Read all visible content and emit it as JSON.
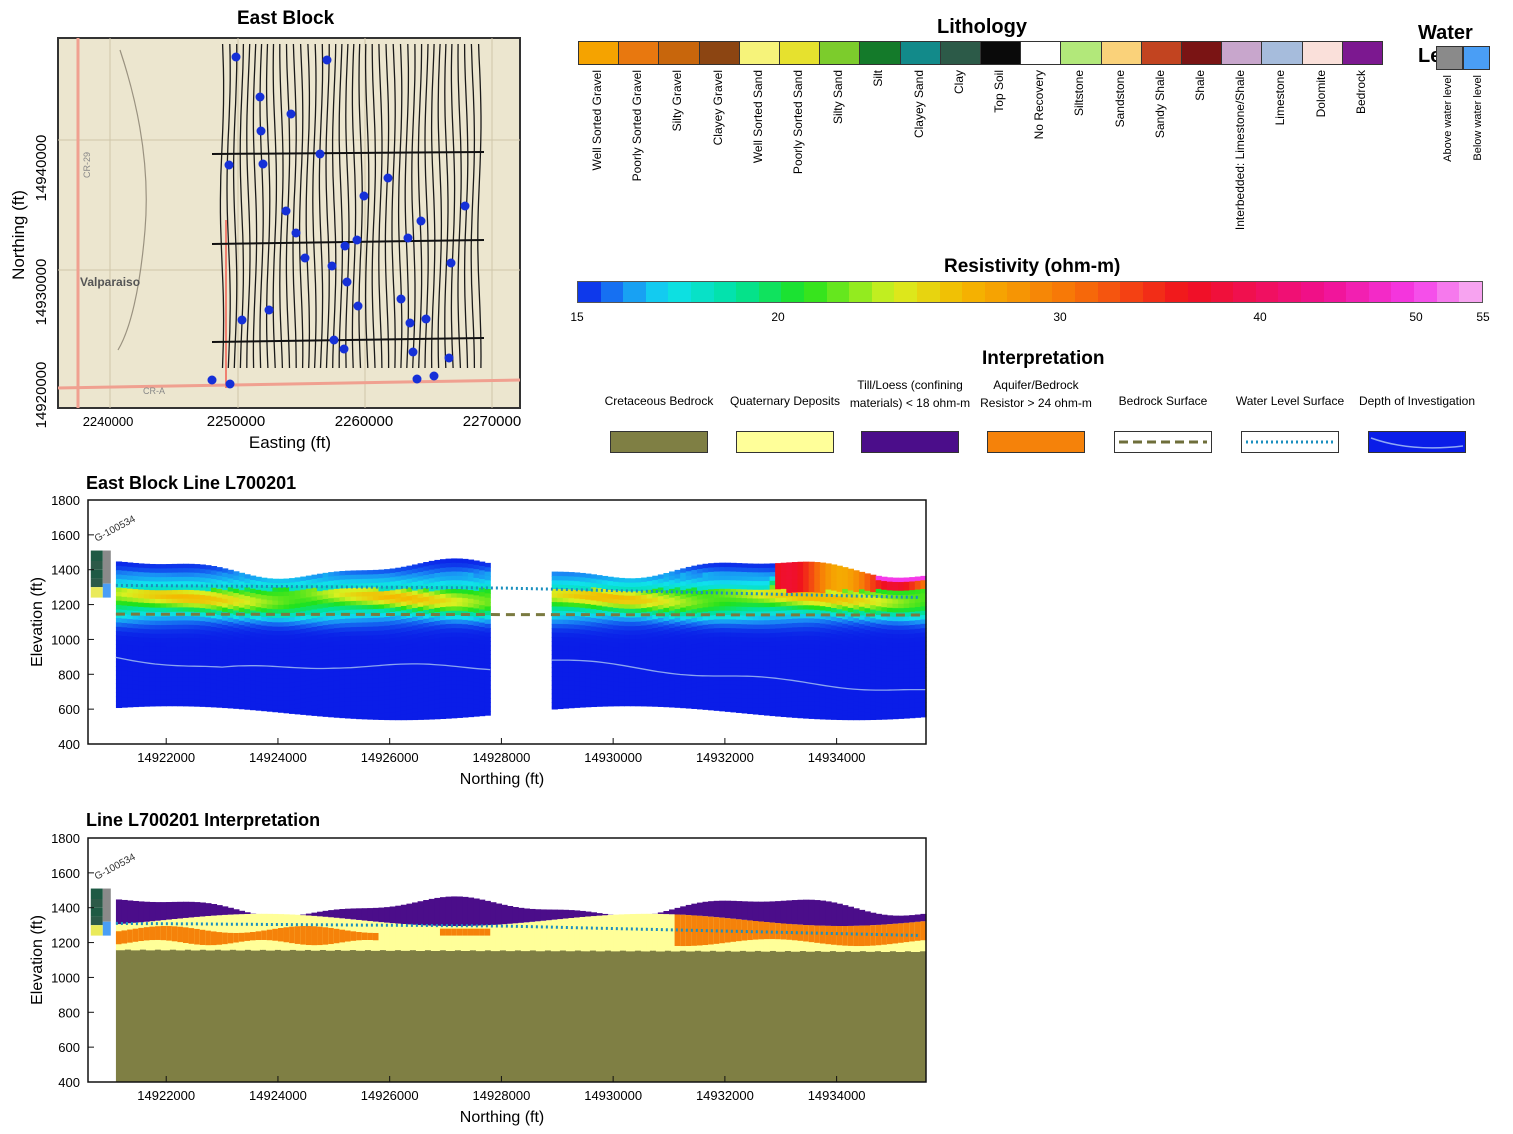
{
  "map": {
    "title": "East Block",
    "xlabel": "Easting (ft)",
    "ylabel": "Northing (ft)",
    "xticks": [
      "2240000",
      "2250000",
      "2260000",
      "2270000"
    ],
    "yticks": [
      "14940000",
      "14930000",
      "14920000"
    ],
    "place_label": "Valparaiso",
    "road_labels": [
      "CR-29",
      "CR-A"
    ]
  },
  "lithology": {
    "title": "Lithology",
    "items": [
      {
        "label": "Well Sorted Gravel",
        "color": "#f5a300"
      },
      {
        "label": "Poorly Sorted Gravel",
        "color": "#e8780f"
      },
      {
        "label": "Silty Gravel",
        "color": "#c8660c"
      },
      {
        "label": "Clayey Gravel",
        "color": "#8c4512"
      },
      {
        "label": "Well Sorted Sand",
        "color": "#f6f37a"
      },
      {
        "label": "Poorly Sorted Sand",
        "color": "#e6e12e"
      },
      {
        "label": "Silty Sand",
        "color": "#7ccc2c"
      },
      {
        "label": "Silt",
        "color": "#147a2a"
      },
      {
        "label": "Clayey Sand",
        "color": "#128a8a"
      },
      {
        "label": "Clay",
        "color": "#2c5a48"
      },
      {
        "label": "Top Soil",
        "color": "#0a0a0a"
      },
      {
        "label": "No Recovery",
        "color": "#ffffff"
      },
      {
        "label": "Siltstone",
        "color": "#b2e87a"
      },
      {
        "label": "Sandstone",
        "color": "#fad27a"
      },
      {
        "label": "Sandy Shale",
        "color": "#c24420"
      },
      {
        "label": "Shale",
        "color": "#7a1414"
      },
      {
        "label": "Interbedded: Limestone/Shale",
        "color": "#c8a6cc"
      },
      {
        "label": "Limestone",
        "color": "#a6bcdc"
      },
      {
        "label": "Dolomite",
        "color": "#fae0da"
      },
      {
        "label": "Bedrock",
        "color": "#7c1890"
      }
    ]
  },
  "water_level": {
    "title": "Water Level",
    "items": [
      {
        "label": "Above water level",
        "color": "#8a8a8a"
      },
      {
        "label": "Below water level",
        "color": "#4a9ef5"
      }
    ]
  },
  "resistivity": {
    "title": "Resistivity (ohm-m)",
    "ticks": [
      "15",
      "20",
      "30",
      "40",
      "50",
      "55"
    ]
  },
  "interpretation_legend": {
    "title": "Interpretation",
    "items": [
      {
        "label": "Cretaceous Bedrock",
        "kind": "fill",
        "color": "#7f7f44"
      },
      {
        "label": "Quaternary Deposits",
        "kind": "fill",
        "color": "#ffff99"
      },
      {
        "label": "Till/Loess (confining materials) < 18 ohm-m",
        "kind": "fill",
        "color": "#4b0d8a"
      },
      {
        "label": "Aquifer/Bedrock Resistor > 24 ohm-m",
        "kind": "fill",
        "color": "#f5820a"
      },
      {
        "label": "Bedrock Surface",
        "kind": "dash",
        "color": "#6e6e3a"
      },
      {
        "label": "Water Level Surface",
        "kind": "dots",
        "color": "#1a8fbf"
      },
      {
        "label": "Depth of Investigation",
        "kind": "doi",
        "color": "#0a1de8"
      }
    ]
  },
  "chart_data": [
    {
      "type": "heatmap",
      "title": "East Block Line L700201",
      "xlabel": "Northing (ft)",
      "ylabel": "Elevation (ft)",
      "xlim": [
        14920600,
        14935600
      ],
      "ylim": [
        400,
        1800
      ],
      "xticks": [
        14922000,
        14924000,
        14926000,
        14928000,
        14930000,
        14932000,
        14934000
      ],
      "yticks": [
        400,
        600,
        800,
        1000,
        1200,
        1400,
        1600,
        1800
      ],
      "borehole": "G-100534",
      "segments": [
        [
          14921100,
          14927800
        ],
        [
          14928900,
          14935600
        ]
      ],
      "water_level_surface": {
        "x": [
          14921100,
          14928000,
          14935600
        ],
        "y": [
          1310,
          1295,
          1240
        ]
      },
      "bedrock_surface": {
        "x": [
          14921100,
          14935600
        ],
        "y": [
          1145,
          1140
        ]
      },
      "depth_of_investigation": {
        "x": [
          14921100,
          14923000,
          14925000,
          14927800,
          14928900,
          14931000,
          14933000,
          14935600
        ],
        "y": [
          900,
          830,
          850,
          840,
          880,
          820,
          760,
          700
        ]
      }
    },
    {
      "type": "area",
      "title": "Line L700201 Interpretation",
      "xlabel": "Northing (ft)",
      "ylabel": "Elevation (ft)",
      "xlim": [
        14920600,
        14935600
      ],
      "ylim": [
        400,
        1800
      ],
      "xticks": [
        14922000,
        14924000,
        14926000,
        14928000,
        14930000,
        14932000,
        14934000
      ],
      "yticks": [
        400,
        600,
        800,
        1000,
        1200,
        1400,
        1600,
        1800
      ],
      "borehole": "G-100534",
      "water_level_surface": {
        "x": [
          14921100,
          14928000,
          14935600
        ],
        "y": [
          1310,
          1295,
          1240
        ]
      },
      "bedrock_surface": {
        "x": [
          14921100,
          14935600
        ],
        "y": [
          1160,
          1150
        ]
      }
    }
  ]
}
